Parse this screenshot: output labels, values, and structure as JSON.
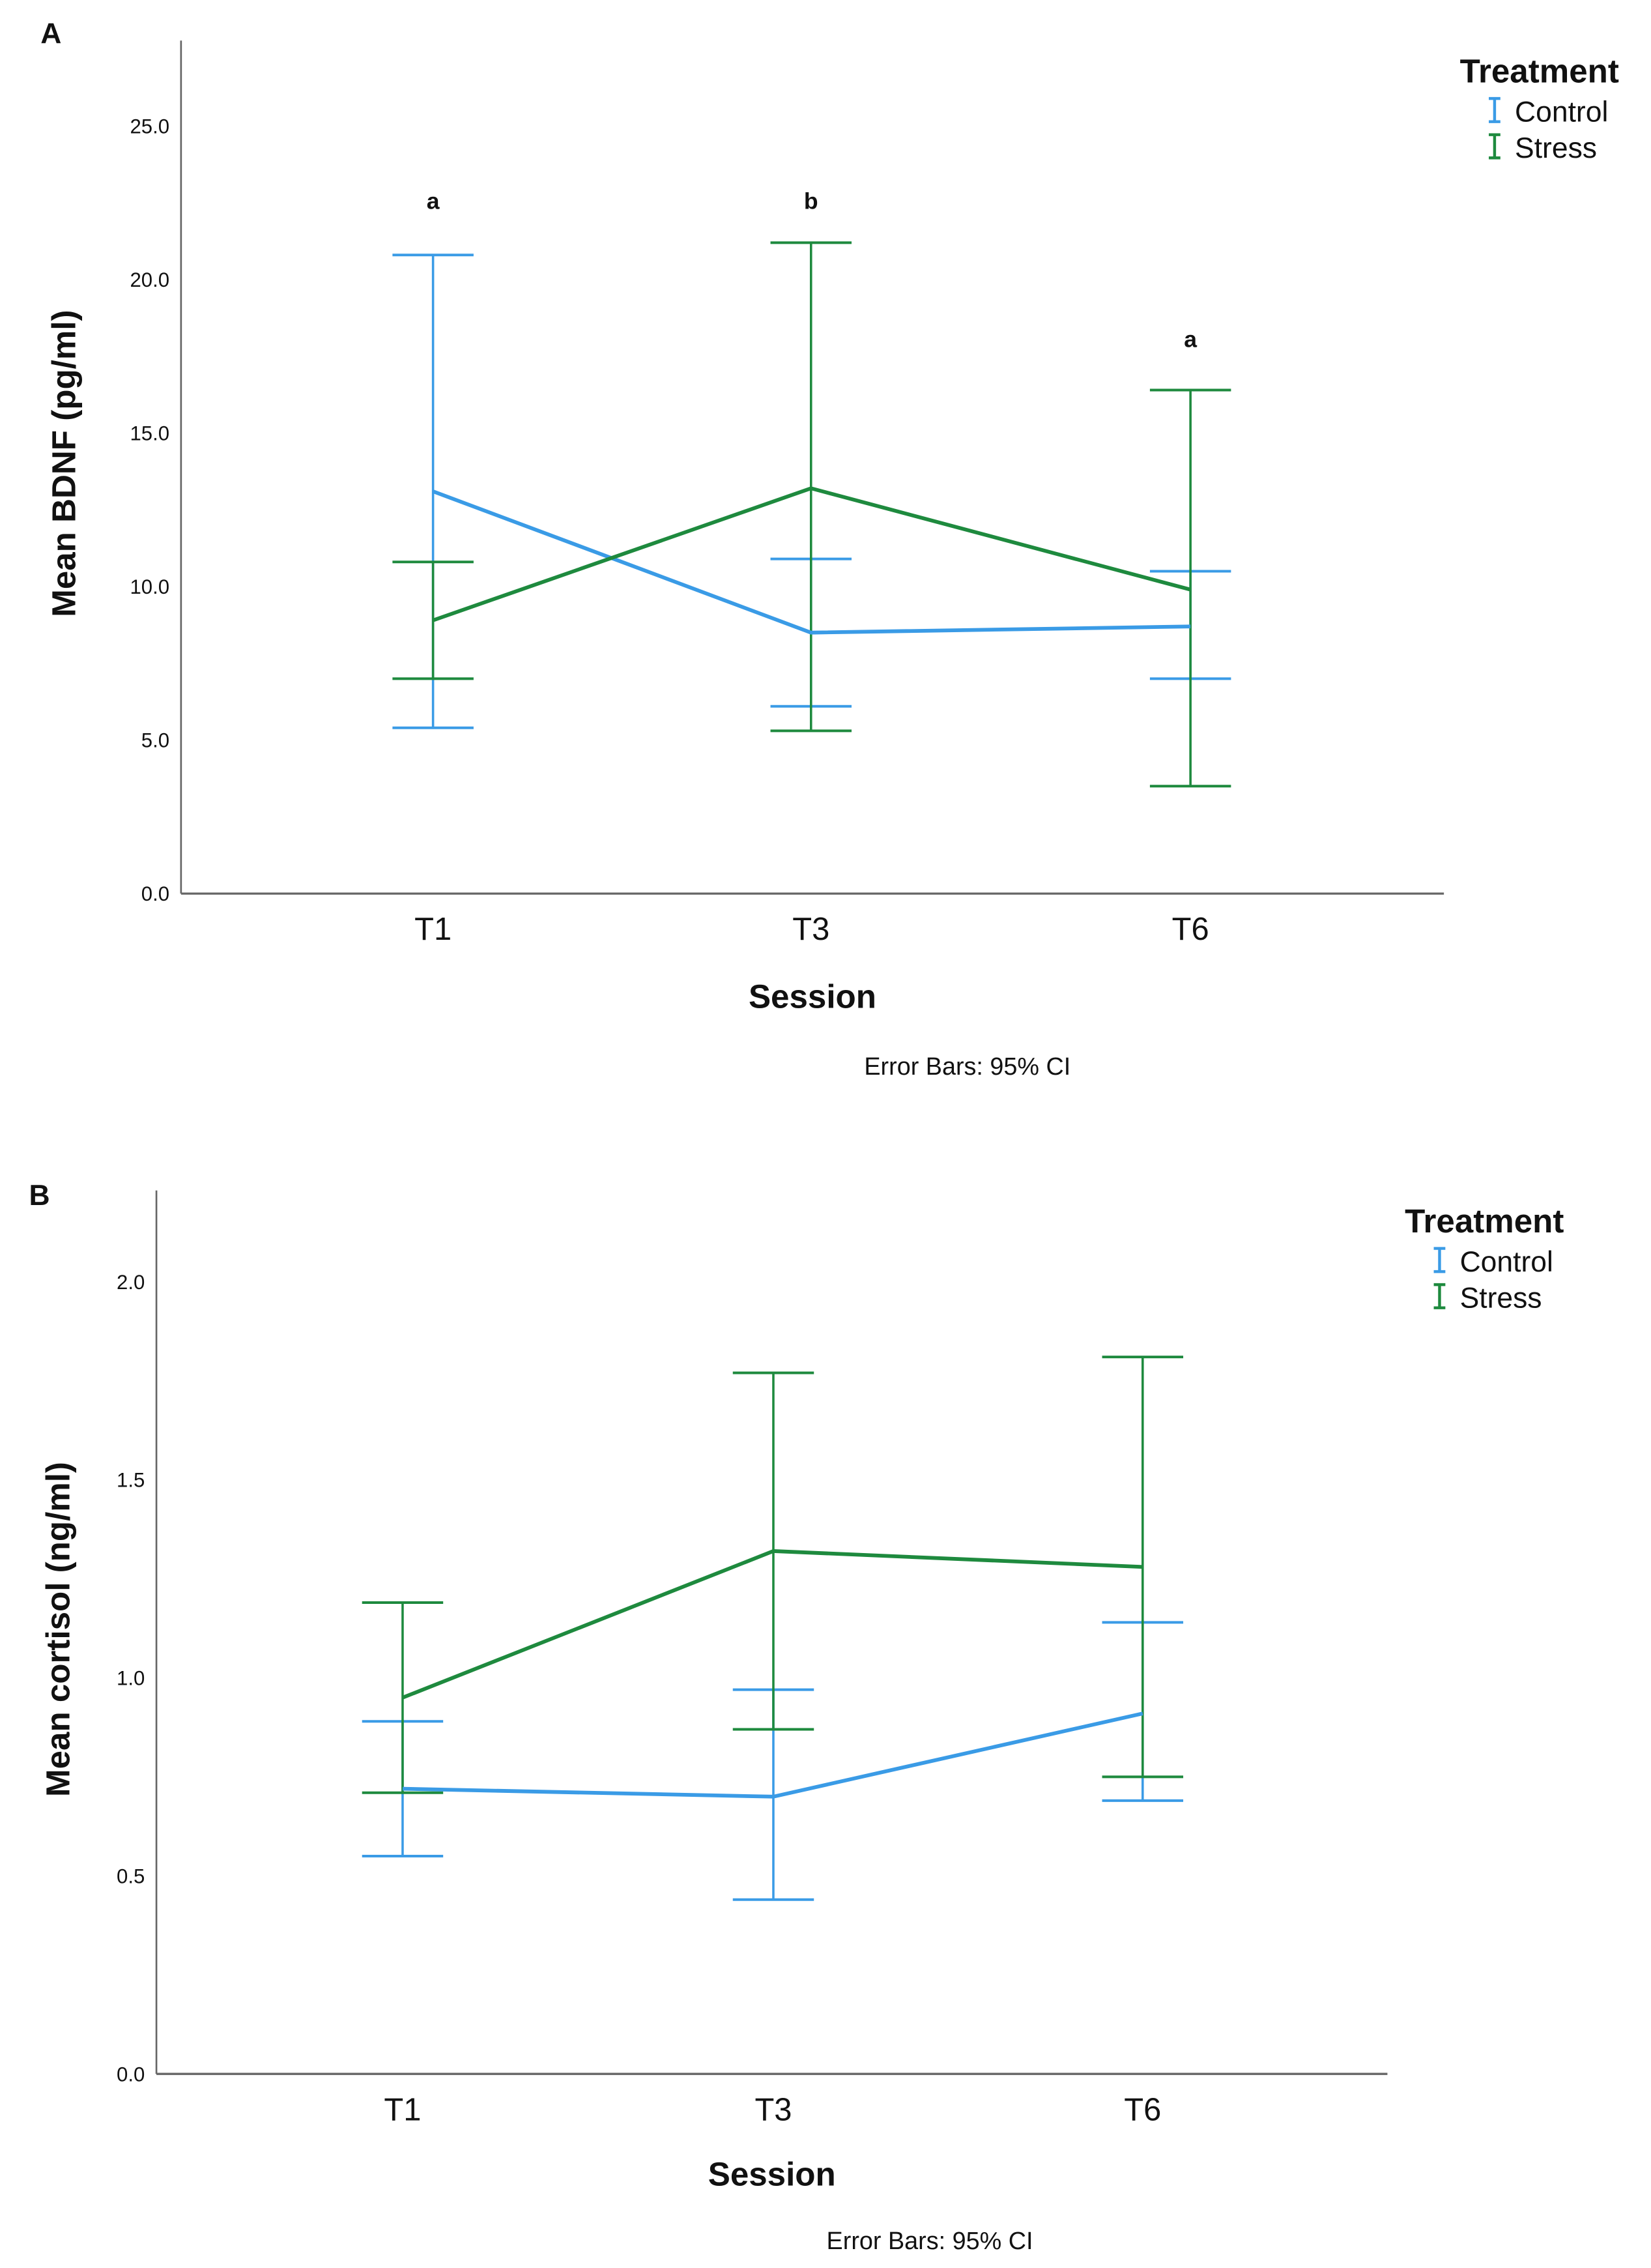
{
  "colors": {
    "Control": "#3a9be6",
    "Stress": "#1e8a3e",
    "axis": "#666666"
  },
  "chart_data": [
    {
      "type": "line",
      "panel": "A",
      "title": "",
      "xlabel": "Session",
      "ylabel": "Mean BDNF (pg/ml)",
      "categories": [
        "T1",
        "T3",
        "T6"
      ],
      "ylim": [
        0,
        27.5
      ],
      "yticks": [
        "0.0",
        "5.0",
        "10.0",
        "15.0",
        "20.0",
        "25.0"
      ],
      "ytick_values": [
        0,
        5,
        10,
        15,
        20,
        25
      ],
      "legend": {
        "title": "Treatment",
        "position": "top-right",
        "entries": [
          "Control",
          "Stress"
        ]
      },
      "note": "Error Bars: 95% CI",
      "series": [
        {
          "name": "Control",
          "values": [
            13.1,
            8.5,
            8.7
          ],
          "ci_low": [
            5.4,
            6.1,
            7.0
          ],
          "ci_high": [
            20.8,
            10.9,
            10.5
          ]
        },
        {
          "name": "Stress",
          "values": [
            8.9,
            13.2,
            9.9
          ],
          "ci_low": [
            7.0,
            5.3,
            3.5
          ],
          "ci_high": [
            10.8,
            21.2,
            16.4
          ]
        }
      ],
      "annotations": [
        {
          "category": "T1",
          "text": "a",
          "y": 22.3
        },
        {
          "category": "T3",
          "text": "b",
          "y": 22.3
        },
        {
          "category": "T6",
          "text": "a",
          "y": 17.8
        }
      ]
    },
    {
      "type": "line",
      "panel": "B",
      "title": "",
      "xlabel": "Session",
      "ylabel": "Mean cortisol (ng/ml)",
      "categories": [
        "T1",
        "T3",
        "T6"
      ],
      "ylim": [
        0,
        2.23
      ],
      "yticks": [
        "0.0",
        "0.5",
        "1.0",
        "1.5",
        "2.0"
      ],
      "ytick_values": [
        0,
        0.5,
        1.0,
        1.5,
        2.0
      ],
      "legend": {
        "title": "Treatment",
        "position": "top-right",
        "entries": [
          "Control",
          "Stress"
        ]
      },
      "note": "Error Bars: 95% CI",
      "series": [
        {
          "name": "Control",
          "values": [
            0.72,
            0.7,
            0.91
          ],
          "ci_low": [
            0.55,
            0.44,
            0.69
          ],
          "ci_high": [
            0.89,
            0.97,
            1.14
          ]
        },
        {
          "name": "Stress",
          "values": [
            0.95,
            1.32,
            1.28
          ],
          "ci_low": [
            0.71,
            0.87,
            0.75
          ],
          "ci_high": [
            1.19,
            1.77,
            1.81
          ]
        }
      ],
      "annotations": []
    }
  ]
}
